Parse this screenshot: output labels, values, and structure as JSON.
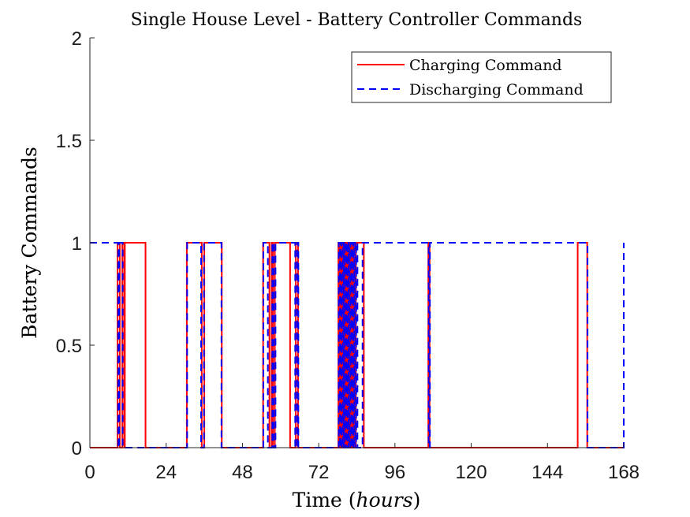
{
  "chart_data": {
    "type": "line",
    "title": "Single House Level - Battery Controller Commands",
    "xlabel_main": "Time (",
    "xlabel_unit": "hours",
    "xlabel_close": ")",
    "ylabel": "Battery Commands",
    "xlim": [
      0,
      168
    ],
    "ylim": [
      0,
      2
    ],
    "xticks": [
      0,
      24,
      48,
      72,
      96,
      120,
      144,
      168
    ],
    "yticks": [
      0,
      0.5,
      1,
      1.5,
      2
    ],
    "ytick_labels": [
      "0",
      "0.5",
      "1",
      "1.5",
      "2"
    ],
    "grid": false,
    "legend_position": "top-right",
    "colors": {
      "charging": "#ff0000",
      "discharging": "#0000ff"
    },
    "series": [
      {
        "name": "Charging Command",
        "style": "solid",
        "color": "#ff0000",
        "on_intervals": [
          [
            8.7,
            9.4
          ],
          [
            10.2,
            10.8
          ],
          [
            11.0,
            17.5
          ],
          [
            30.5,
            35.2
          ],
          [
            36.0,
            41.5
          ],
          [
            54.5,
            56.5
          ],
          [
            57.2,
            57.6
          ],
          [
            58.2,
            63.0
          ],
          [
            64.8,
            65.5
          ],
          [
            78.2,
            78.6
          ],
          [
            78.9,
            79.2
          ],
          [
            79.5,
            79.8
          ],
          [
            80.1,
            80.4
          ],
          [
            80.7,
            81.0
          ],
          [
            81.3,
            81.6
          ],
          [
            81.9,
            82.2
          ],
          [
            82.5,
            82.8
          ],
          [
            83.1,
            83.4
          ],
          [
            83.7,
            86.2
          ],
          [
            106.5,
            106.9
          ],
          [
            153.5,
            156.5
          ]
        ]
      },
      {
        "name": "Discharging Command",
        "style": "dashed",
        "color": "#0000ff",
        "off_intervals": [
          [
            8.9,
            9.2
          ],
          [
            10.3,
            30.6
          ],
          [
            35.0,
            35.9
          ],
          [
            41.4,
            54.6
          ],
          [
            56.0,
            57.4
          ],
          [
            57.8,
            58.4
          ],
          [
            64.6,
            65.2
          ],
          [
            65.6,
            78.3
          ],
          [
            78.7,
            79.0
          ],
          [
            79.3,
            79.6
          ],
          [
            79.9,
            80.2
          ],
          [
            80.5,
            80.8
          ],
          [
            81.1,
            81.4
          ],
          [
            81.7,
            82.0
          ],
          [
            82.3,
            82.6
          ],
          [
            82.9,
            83.2
          ],
          [
            83.5,
            83.8
          ],
          [
            84.2,
            85.8
          ],
          [
            106.6,
            107.0
          ],
          [
            156.6,
            168.0
          ]
        ]
      }
    ]
  }
}
